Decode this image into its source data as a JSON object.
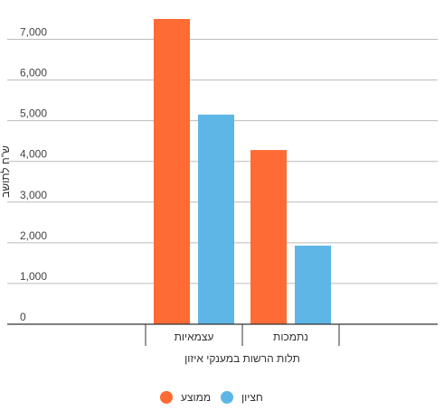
{
  "chart_data": {
    "type": "bar",
    "categories": [
      "עצמאיות",
      "נתמכות"
    ],
    "series": [
      {
        "name": "ממוצע",
        "color": "#ff6b35",
        "values": [
          7500,
          4280
        ]
      },
      {
        "name": "חציון",
        "color": "#5db6e6",
        "values": [
          5150,
          1930
        ]
      }
    ],
    "xlabel": "תלות הרשות במענקי איזון",
    "ylabel": "ש\"ח לתושב",
    "ylim": [
      0,
      7500
    ],
    "yticks": [
      0,
      1000,
      2000,
      3000,
      4000,
      5000,
      6000,
      7000
    ],
    "ytick_labels": [
      "0",
      "1,000",
      "2,000",
      "3,000",
      "4,000",
      "5,000",
      "6,000",
      "7,000"
    ],
    "grid": true,
    "legend": "bottom"
  }
}
